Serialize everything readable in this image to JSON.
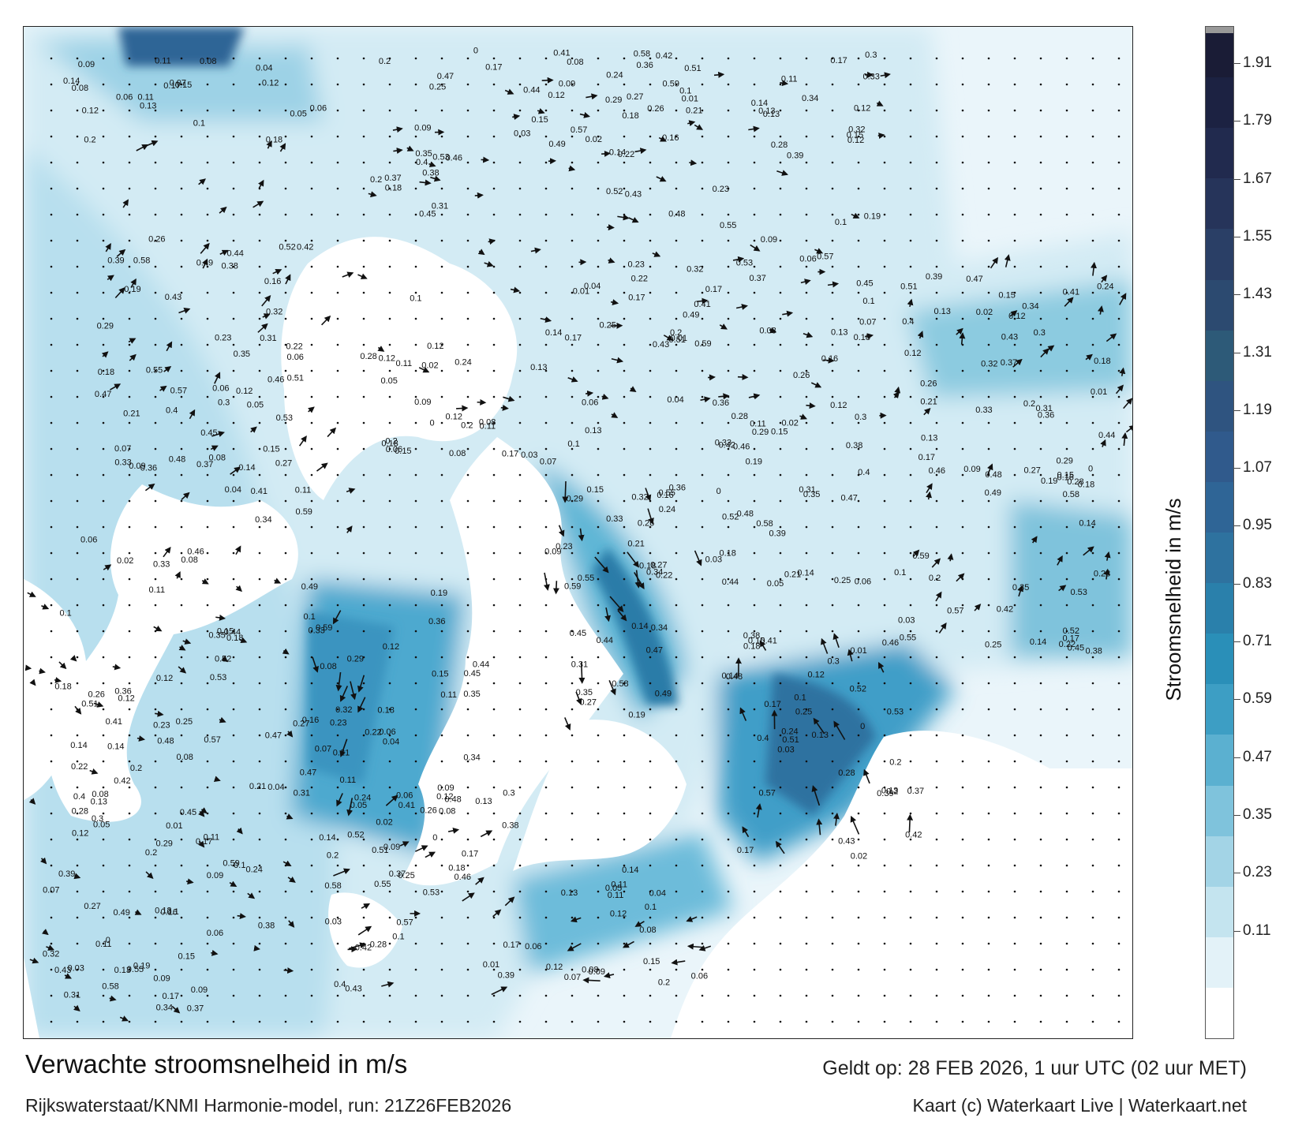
{
  "title": "Verwachte stroomsnelheid in m/s",
  "subtitle": "Rijkswaterstaat/KNMI Harmonie-model, run: 21Z26FEB2026",
  "valid_time": "Geldt op: 28 FEB 2026, 1 uur UTC (02 uur MET)",
  "credit": "Kaart (c) Waterkaart Live | Waterkaart.net",
  "colorbar": {
    "label": "Stroomsnelheid in m/s",
    "ticks": [
      "1.91",
      "1.79",
      "1.67",
      "1.55",
      "1.43",
      "1.31",
      "1.19",
      "1.07",
      "0.95",
      "0.83",
      "0.71",
      "0.59",
      "0.47",
      "0.35",
      "0.23",
      "0.11"
    ],
    "bands": [
      "#ffffff",
      "#e3f2f8",
      "#c4e4ef",
      "#a3d4e6",
      "#7fc3dc",
      "#5bb0d0",
      "#3d9ec4",
      "#2a8fb8",
      "#2a80ab",
      "#2e729f",
      "#2f6596",
      "#305a8c",
      "#2f5480",
      "#2d5a78",
      "#2c4a70",
      "#2a3f66",
      "#26345a",
      "#212a4e",
      "#1c2242",
      "#1a1c36"
    ],
    "colors": {
      "land": "#ffffff",
      "water_light": "#e8f4f9",
      "water_mid": "#8ccbe0",
      "water_dark": "#2a89b3",
      "arrow": "#111111"
    }
  },
  "map_labels": [
    {
      "t": "0.17"
    },
    {
      "t": "0.18"
    },
    {
      "t": "0.12"
    },
    {
      "t": "0.2"
    },
    {
      "t": "0.15"
    },
    {
      "t": "0.13"
    },
    {
      "t": "0.14"
    },
    {
      "t": "0.12"
    },
    {
      "t": "0.11"
    },
    {
      "t": "0.1"
    },
    {
      "t": "0.09"
    },
    {
      "t": "0.08"
    },
    {
      "t": "0.05"
    },
    {
      "t": "0.04"
    },
    {
      "t": "0.06"
    },
    {
      "t": "0.07"
    },
    {
      "t": "0.11"
    },
    {
      "t": "0.06"
    },
    {
      "t": "0.08"
    },
    {
      "t": "0.12"
    },
    {
      "t": "0.15"
    },
    {
      "t": "0.26"
    },
    {
      "t": "0.19"
    },
    {
      "t": "0.22"
    },
    {
      "t": "0.14"
    },
    {
      "t": "0.16"
    },
    {
      "t": "0.09"
    },
    {
      "t": "0.18"
    },
    {
      "t": "0.27"
    },
    {
      "t": "0.29"
    },
    {
      "t": "0.31"
    },
    {
      "t": "0.35"
    },
    {
      "t": "0.32"
    },
    {
      "t": "0.33"
    },
    {
      "t": "0.23"
    },
    {
      "t": "0.34"
    },
    {
      "t": "0.49"
    },
    {
      "t": "0.59"
    },
    {
      "t": "0.36"
    },
    {
      "t": "0.21"
    },
    {
      "t": "0.47"
    },
    {
      "t": "0.44"
    },
    {
      "t": "0.45"
    },
    {
      "t": "0.55"
    },
    {
      "t": "0.58"
    },
    {
      "t": "0.53"
    },
    {
      "t": "0.42"
    },
    {
      "t": "0.43"
    },
    {
      "t": "0.37"
    },
    {
      "t": "0.4"
    },
    {
      "t": "0.48"
    },
    {
      "t": "0.46"
    },
    {
      "t": "0.51"
    },
    {
      "t": "0.38"
    },
    {
      "t": "0.39"
    },
    {
      "t": "0.52"
    },
    {
      "t": "0.57"
    },
    {
      "t": "0.41"
    },
    {
      "t": "0.3"
    },
    {
      "t": "0.28"
    },
    {
      "t": "0.25"
    },
    {
      "t": "0.24"
    },
    {
      "t": "0.01"
    },
    {
      "t": "0.02"
    },
    {
      "t": "0.03"
    },
    {
      "t": "0"
    },
    {
      "t": "0.1"
    },
    {
      "t": "0.13"
    },
    {
      "t": "0.17"
    },
    {
      "t": "0.2"
    }
  ]
}
